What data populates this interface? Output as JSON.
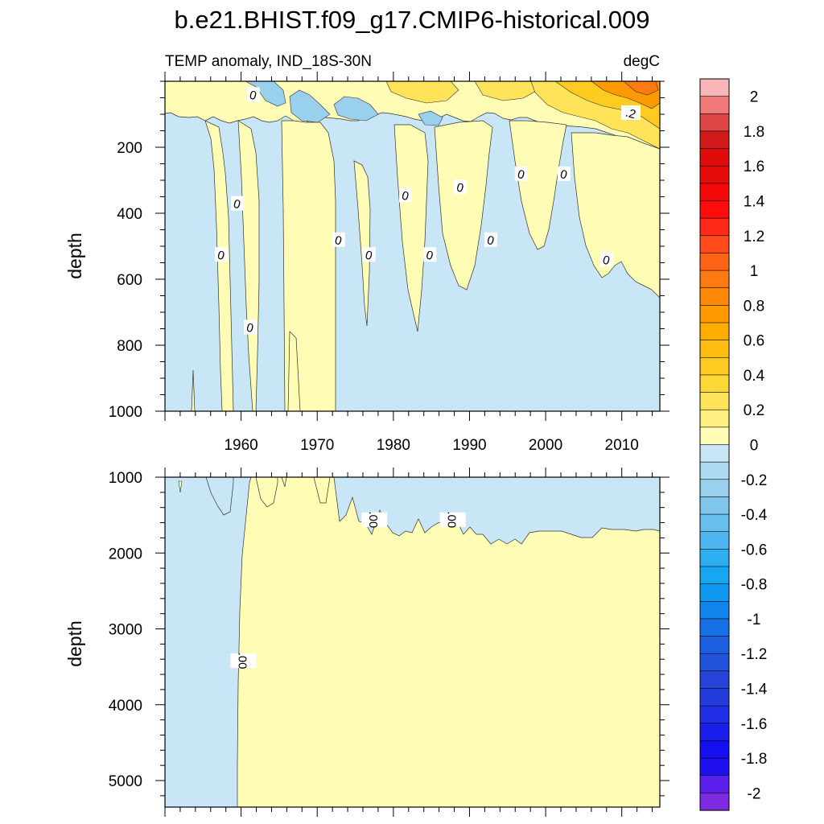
{
  "title": "b.e21.BHIST.f09_g17.CMIP6-historical.009",
  "subtitle_left": "TEMP anomaly, IND_18S-30N",
  "subtitle_right": "degC",
  "chart_data": {
    "type": "heatmap",
    "x_range": [
      1950,
      2015
    ],
    "x_ticks": [
      "1960",
      "1970",
      "1980",
      "1990",
      "2000",
      "2010"
    ],
    "x_tick_values": [
      1960,
      1970,
      1980,
      1990,
      2000,
      2010
    ],
    "panels": [
      {
        "name": "upper",
        "ylabel": "depth",
        "y_range": [
          0,
          1000
        ],
        "y_ticks": [
          "200",
          "400",
          "600",
          "800",
          "1000"
        ],
        "y_tick_values": [
          200,
          400,
          600,
          800,
          1000
        ],
        "contour_labels": [
          {
            "text": "0",
            "x": 1961.6,
            "y": 40
          },
          {
            "text": "0",
            "x": 1959.5,
            "y": 370
          },
          {
            "text": "0",
            "x": 1957.4,
            "y": 525
          },
          {
            "text": "0",
            "x": 1961.2,
            "y": 745
          },
          {
            "text": "0",
            "x": 1972.8,
            "y": 480
          },
          {
            "text": "0",
            "x": 1976.8,
            "y": 525
          },
          {
            "text": "0",
            "x": 1981.6,
            "y": 345
          },
          {
            "text": "0",
            "x": 1984.8,
            "y": 525
          },
          {
            "text": "0",
            "x": 1988.8,
            "y": 320
          },
          {
            "text": "0",
            "x": 1992.8,
            "y": 480
          },
          {
            "text": "0",
            "x": 1996.8,
            "y": 280
          },
          {
            "text": "0",
            "x": 2002.4,
            "y": 280
          },
          {
            "text": "0",
            "x": 2008.0,
            "y": 540
          },
          {
            "text": ".2",
            "x": 2011.2,
            "y": 95
          }
        ]
      },
      {
        "name": "lower",
        "ylabel": "depth",
        "y_range": [
          1000,
          5350
        ],
        "y_ticks": [
          "1000",
          "2000",
          "3000",
          "4000",
          "5000"
        ],
        "y_tick_values": [
          1000,
          2000,
          3000,
          4000,
          5000
        ],
        "contour_labels": [
          {
            "text": ".00",
            "x": 1977.5,
            "y": 1560
          },
          {
            "text": ".00",
            "x": 1987.8,
            "y": 1560
          },
          {
            "text": ".00",
            "x": 1960.3,
            "y": 3420
          }
        ]
      }
    ],
    "colorbar": {
      "min": -2.1,
      "max": 2.1,
      "step": 0.1,
      "labels": [
        "2",
        "1.8",
        "1.6",
        "1.4",
        "1.2",
        "1",
        "0.8",
        "0.6",
        "0.4",
        "0.2",
        "0",
        "-0.2",
        "-0.4",
        "-0.6",
        "-0.8",
        "-1",
        "-1.2",
        "-1.4",
        "-1.6",
        "-1.8",
        "-2"
      ],
      "label_values": [
        2,
        1.8,
        1.6,
        1.4,
        1.2,
        1,
        0.8,
        0.6,
        0.4,
        0.2,
        0,
        -0.2,
        -0.4,
        -0.6,
        -0.8,
        -1,
        -1.2,
        -1.4,
        -1.6,
        -1.8,
        -2
      ],
      "colors_top_to_bottom": [
        "#f9b7b7",
        "#f07b7b",
        "#e04545",
        "#d11a1a",
        "#df0c0c",
        "#e80b0b",
        "#f40808",
        "#ff0d0d",
        "#ff2a1a",
        "#ff4a1a",
        "#ff6415",
        "#ff7a10",
        "#ff8a0a",
        "#ff9a00",
        "#ffad00",
        "#ffbd10",
        "#ffcb20",
        "#ffd838",
        "#ffe45a",
        "#ffee80",
        "#fffcb5",
        "#c8e6f6",
        "#addaf1",
        "#98d0ee",
        "#80c6ec",
        "#66bfef",
        "#4fb6f1",
        "#2eaef2",
        "#17a6f2",
        "#0f98ef",
        "#1084ea",
        "#176fe4",
        "#1b5ee0",
        "#2153dc",
        "#2645d8",
        "#243bdc",
        "#1f2ee4",
        "#1a1eea",
        "#1410f2",
        "#2010f0",
        "#5a20ea",
        "#7d2ae0"
      ]
    },
    "colors": {
      "positive_fill": "#fffcb5",
      "negative_fill": "#c8e6f6"
    }
  }
}
